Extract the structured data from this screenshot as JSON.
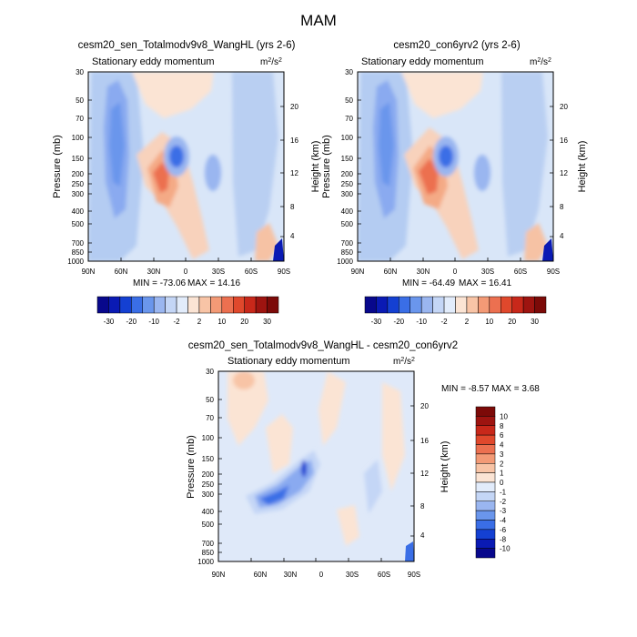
{
  "figure_title": "MAM",
  "chart_data": [
    {
      "type": "contour",
      "title": "cesm20_sen_Totalmodv9v8_WangHL (yrs 2-6)",
      "subtitle_left": "Stationary eddy momentum",
      "units": "m2/s2",
      "xlabel": "",
      "ylabel": "Pressure (mb)",
      "ylabel_right": "Height (km)",
      "x_ticks": [
        "90N",
        "60N",
        "30N",
        "0",
        "30S",
        "60S",
        "90S"
      ],
      "y_ticks": [
        "30",
        "50",
        "70",
        "100",
        "150",
        "200",
        "250",
        "300",
        "400",
        "500",
        "700",
        "850",
        "1000"
      ],
      "height_ticks": [
        "4",
        "8",
        "12",
        "16",
        "20"
      ],
      "xlim": [
        90,
        -90
      ],
      "ylim_mb": [
        1000,
        30
      ],
      "min_label": "MIN = -73.06",
      "max_label": "MAX =  14.16",
      "min": -73.06,
      "max": 14.16,
      "features": [
        {
          "lat": 62,
          "p": 150,
          "value": -12,
          "desc": "upper-level negative column near 60N"
        },
        {
          "lat": 24,
          "p": 200,
          "value": 6,
          "desc": "positive maximum near 25N"
        },
        {
          "lat": 14,
          "p": 150,
          "value": -15,
          "desc": "negative center near 15N"
        },
        {
          "lat": -24,
          "p": 200,
          "value": -6,
          "desc": "weak negative near 25S"
        },
        {
          "lat": -62,
          "p": 100,
          "value": -5,
          "desc": "negative column near 60S"
        },
        {
          "lat": -85,
          "p": 850,
          "value": -30,
          "desc": "surface minimum near Antarctica"
        }
      ]
    },
    {
      "type": "contour",
      "title": "cesm20_con6yrv2 (yrs 2-6)",
      "subtitle_left": "Stationary eddy momentum",
      "units": "m2/s2",
      "xlabel": "",
      "ylabel": "Pressure (mb)",
      "ylabel_right": "Height (km)",
      "x_ticks": [
        "90N",
        "60N",
        "30N",
        "0",
        "30S",
        "60S",
        "90S"
      ],
      "y_ticks": [
        "30",
        "50",
        "70",
        "100",
        "150",
        "200",
        "250",
        "300",
        "400",
        "500",
        "700",
        "850",
        "1000"
      ],
      "height_ticks": [
        "4",
        "8",
        "12",
        "16",
        "20"
      ],
      "xlim": [
        90,
        -90
      ],
      "ylim_mb": [
        1000,
        30
      ],
      "min_label": "MIN = -64.49",
      "max_label": "MAX =  16.41",
      "min": -64.49,
      "max": 16.41,
      "features": [
        {
          "lat": 62,
          "p": 150,
          "value": -12,
          "desc": "upper-level negative column near 60N"
        },
        {
          "lat": 26,
          "p": 200,
          "value": 8,
          "desc": "positive maximum near 25N"
        },
        {
          "lat": 12,
          "p": 150,
          "value": -15,
          "desc": "negative center near 15N"
        },
        {
          "lat": -24,
          "p": 200,
          "value": -6,
          "desc": "weak negative near 25S"
        },
        {
          "lat": -62,
          "p": 100,
          "value": -5,
          "desc": "negative column near 60S"
        },
        {
          "lat": -85,
          "p": 850,
          "value": -30,
          "desc": "surface minimum near Antarctica"
        }
      ]
    },
    {
      "type": "contour",
      "title": "cesm20_sen_Totalmodv9v8_WangHL - cesm20_con6yrv2",
      "subtitle_left": "Stationary eddy momentum",
      "units": "m2/s2",
      "xlabel": "",
      "ylabel": "Pressure (mb)",
      "ylabel_right": "Height (km)",
      "x_ticks": [
        "90N",
        "60N",
        "30N",
        "0",
        "30S",
        "60S",
        "90S"
      ],
      "y_ticks": [
        "30",
        "50",
        "70",
        "100",
        "150",
        "200",
        "250",
        "300",
        "400",
        "500",
        "700",
        "850",
        "1000"
      ],
      "height_ticks": [
        "4",
        "8",
        "12",
        "16",
        "20"
      ],
      "xlim": [
        90,
        -90
      ],
      "ylim_mb": [
        1000,
        30
      ],
      "minmax_label": "MIN =  -8.57  MAX =   3.68",
      "min": -8.57,
      "max": 3.68,
      "features": [
        {
          "lat": 25,
          "p": 250,
          "value": -4,
          "desc": "negative band 20N-50N at 200-300 mb"
        },
        {
          "lat": 20,
          "p": 180,
          "value": -5,
          "desc": "negative core near 20N"
        },
        {
          "lat": 62,
          "p": 40,
          "value": 2,
          "desc": "positive near 60N upper levels"
        },
        {
          "lat": -30,
          "p": 100,
          "value": -1,
          "desc": "weak negative upper southern"
        },
        {
          "lat": -85,
          "p": 950,
          "value": -3,
          "desc": "surface negative near Antarctica"
        }
      ]
    }
  ],
  "colorbar_abs": {
    "labels": [
      "-30",
      "-20",
      "-10",
      "-2",
      "2",
      "10",
      "20",
      "30"
    ],
    "colors": [
      "#08088c",
      "#0a1ab4",
      "#1440d2",
      "#3a6ee6",
      "#6a96ec",
      "#9ab6f0",
      "#c4d6f6",
      "#e2ecfb",
      "#fbe4d4",
      "#f8c4a6",
      "#f39a76",
      "#ec7050",
      "#e0482c",
      "#c8281a",
      "#9e1410",
      "#7c0a08"
    ]
  },
  "colorbar_diff": {
    "labels": [
      "10",
      "8",
      "6",
      "4",
      "3",
      "2",
      "1",
      "0",
      "-1",
      "-2",
      "-3",
      "-4",
      "-6",
      "-8",
      "-10"
    ],
    "colors": [
      "#7c0a08",
      "#9e1410",
      "#c8281a",
      "#e0482c",
      "#ec7050",
      "#f39a76",
      "#f8c4a6",
      "#fbe4d4",
      "#e2ecfb",
      "#c4d6f6",
      "#9ab6f0",
      "#6a96ec",
      "#3a6ee6",
      "#1440d2",
      "#0a1ab4",
      "#08088c"
    ]
  }
}
